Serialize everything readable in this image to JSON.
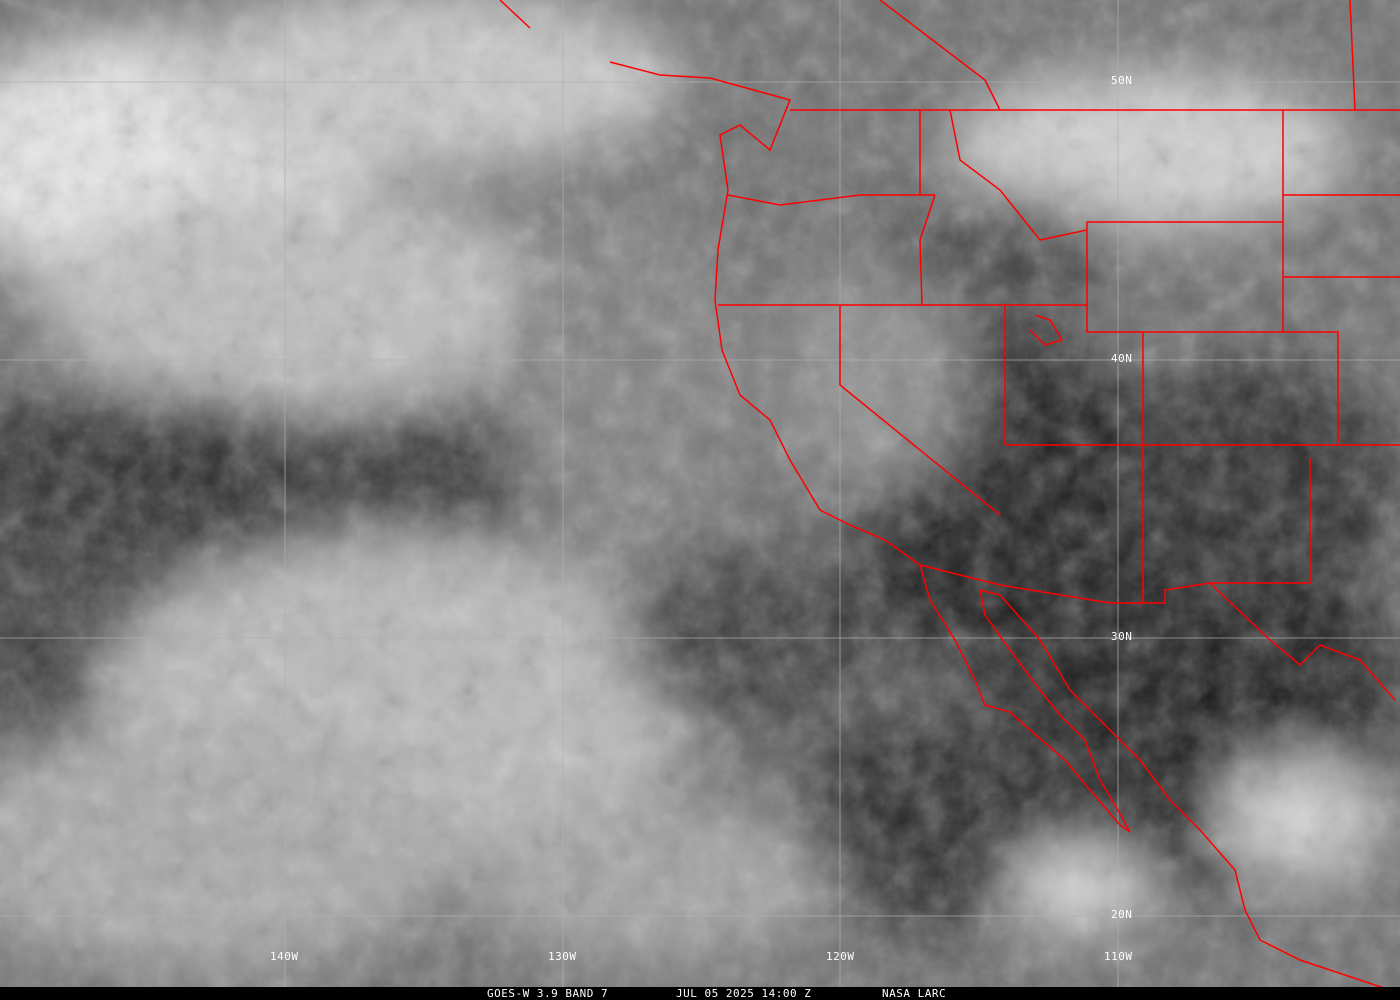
{
  "footer": {
    "satellite": "GOES-W 3.9 BAND 7",
    "datetime": "JUL 05 2025 14:00 Z",
    "source": "NASA LARC"
  },
  "grid": {
    "longitudes": [
      "140W",
      "130W",
      "120W",
      "110W"
    ],
    "latitudes": [
      "50N",
      "40N",
      "30N",
      "20N"
    ]
  },
  "colors": {
    "boundaries": "#ff0000",
    "grid": "#b0b0b0",
    "labels": "#ffffff"
  }
}
